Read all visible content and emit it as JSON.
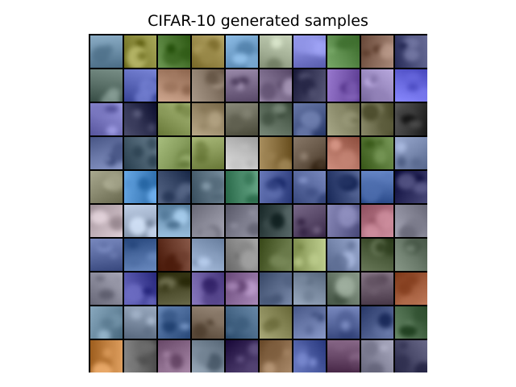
{
  "figure": {
    "title": "CIFAR-10 generated samples"
  },
  "grid": {
    "rows": 10,
    "cols": 10,
    "tiles": [
      [
        "#6d8fa8",
        "#8a8a3c",
        "#4f7a35",
        "#9a8a4a",
        "#6f9ec8",
        "#a8b49a",
        "#7a7ed0",
        "#5a8a4a",
        "#8a6a5a",
        "#4a4e7a"
      ],
      [
        "#5a7068",
        "#5a66b8",
        "#b08870",
        "#8a7a6a",
        "#7a6a8a",
        "#7a6a8a",
        "#3a3a5a",
        "#7a5ab0",
        "#9a8ac0",
        "#6a6ae0"
      ],
      [
        "#7a78c0",
        "#2e3050",
        "#8a9a5a",
        "#9a8a6a",
        "#6a6a5a",
        "#5a6a5a",
        "#4a5a8a",
        "#8a8a6a",
        "#6a6a4a",
        "#3a3a3a"
      ],
      [
        "#6a78a8",
        "#4a6070",
        "#8aa060",
        "#8a9a5a",
        "#c0c0c0",
        "#8a7040",
        "#6a5a4a",
        "#b07060",
        "#5a7a3a",
        "#7a8ab0"
      ],
      [
        "#8a8a70",
        "#4a8ac8",
        "#3a4a6a",
        "#5a7080",
        "#4a8a6a",
        "#4a5a9a",
        "#5a6aa0",
        "#3a4a7a",
        "#4a6aaa",
        "#2a2a5a"
      ],
      [
        "#c0b0b8",
        "#a0b0c8",
        "#7aa0c0",
        "#8a8a98",
        "#7a7a8a",
        "#3a4a4a",
        "#5a4a6a",
        "#6a6a9a",
        "#b07080",
        "#8a8a9a"
      ],
      [
        "#5a6aa0",
        "#4a6aa0",
        "#6a3a2a",
        "#8aa0c0",
        "#8a8a8a",
        "#5a6a3a",
        "#a0b070",
        "#7a8ab0",
        "#4a5a3a",
        "#6a7a6a"
      ],
      [
        "#8a8a9a",
        "#4a4aa0",
        "#4a4a2a",
        "#6a5aa0",
        "#8a6a9a",
        "#5a6a8a",
        "#7a8aa0",
        "#6a7a6a",
        "#6a5a6a",
        "#a05a3a"
      ],
      [
        "#6a8aa0",
        "#7a8aa0",
        "#4a6a9a",
        "#7a6a5a",
        "#4a6a8a",
        "#8a8a5a",
        "#6a7aaa",
        "#5a6aa0",
        "#4a5a8a",
        "#4a6a4a"
      ],
      [
        "#c08040",
        "#6a6a6a",
        "#8a6a8a",
        "#7a8a9a",
        "#3a2a5a",
        "#8a6a4a",
        "#4a5aa0",
        "#6a4a6a",
        "#8a8aa0",
        "#4a4a6a"
      ]
    ]
  }
}
